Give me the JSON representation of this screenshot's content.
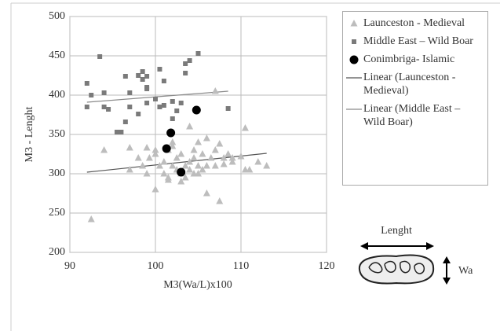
{
  "chart_data": {
    "type": "scatter",
    "xlabel": "M3(Wa/L)x100",
    "ylabel": "M3 - Lenght",
    "xlim": [
      90,
      120
    ],
    "xticks": [
      90,
      100,
      110,
      120
    ],
    "ylim": [
      200,
      500
    ],
    "yticks": [
      200,
      250,
      300,
      350,
      400,
      450,
      500
    ],
    "grid": true,
    "series": [
      {
        "name": "Launceston - Medieval",
        "color": "#bdbdbd",
        "marker": "triangle",
        "x": [
          92.5,
          94,
          97,
          97,
          98.5,
          99,
          99,
          99.3,
          100,
          100,
          100.5,
          101,
          101,
          101.5,
          101.5,
          102,
          102,
          102,
          102.5,
          103,
          103,
          103,
          103.5,
          103.5,
          104,
          104,
          104,
          104.5,
          104.5,
          104.5,
          105,
          105,
          105,
          105.5,
          105.5,
          106,
          106,
          106,
          106.5,
          107,
          107,
          107,
          107.5,
          107.5,
          108,
          108,
          108.5,
          109,
          109,
          110,
          110.5,
          110.5,
          111,
          112,
          113,
          101.5,
          102.5,
          100,
          98
        ],
        "values": [
          242,
          330,
          305,
          333,
          310,
          300,
          333,
          320,
          280,
          330,
          310,
          300,
          315,
          295,
          330,
          310,
          335,
          340,
          320,
          290,
          300,
          325,
          295,
          310,
          360,
          315,
          305,
          300,
          320,
          330,
          310,
          300,
          340,
          325,
          305,
          345,
          310,
          275,
          320,
          405,
          330,
          310,
          265,
          338,
          320,
          312,
          325,
          315,
          320,
          322,
          358,
          305,
          305,
          315,
          310,
          292,
          305,
          325,
          320
        ]
      },
      {
        "name": "Middle East  – Wild Boar",
        "color": "#7a7a7a",
        "marker": "square",
        "x": [
          92,
          92,
          92.5,
          93.5,
          94,
          94,
          94.5,
          95.5,
          96,
          96.5,
          96.5,
          97,
          97,
          98,
          98,
          98.5,
          98.5,
          99,
          99,
          99,
          99,
          100,
          100.5,
          100.5,
          101,
          101,
          102,
          102,
          102.5,
          103,
          103.5,
          103.5,
          104,
          105,
          108.5
        ],
        "values": [
          415,
          385,
          400,
          449,
          403,
          385,
          382,
          353,
          353,
          424,
          366,
          385,
          403,
          425,
          376,
          430,
          420,
          424,
          408,
          390,
          410,
          395,
          433,
          385,
          418,
          387,
          370,
          392,
          380,
          390,
          428,
          440,
          444,
          453,
          383
        ]
      },
      {
        "name": "Conimbriga-  Islamic",
        "color": "#000000",
        "marker": "circle",
        "x": [
          101.8,
          101.3,
          103,
          104.8
        ],
        "values": [
          352,
          332,
          302,
          381
        ]
      }
    ],
    "trendlines": [
      {
        "name": "Linear (Launceston - Medieval)",
        "color": "#555555",
        "x": [
          92,
          113
        ],
        "values": [
          302,
          326
        ]
      },
      {
        "name": "Linear (Middle East  – Wild Boar)",
        "color": "#8a8a8a",
        "x": [
          92,
          108.5
        ],
        "values": [
          391,
          405
        ]
      }
    ]
  },
  "diagram": {
    "length_label": "Lenght",
    "width_label": "Wa"
  }
}
